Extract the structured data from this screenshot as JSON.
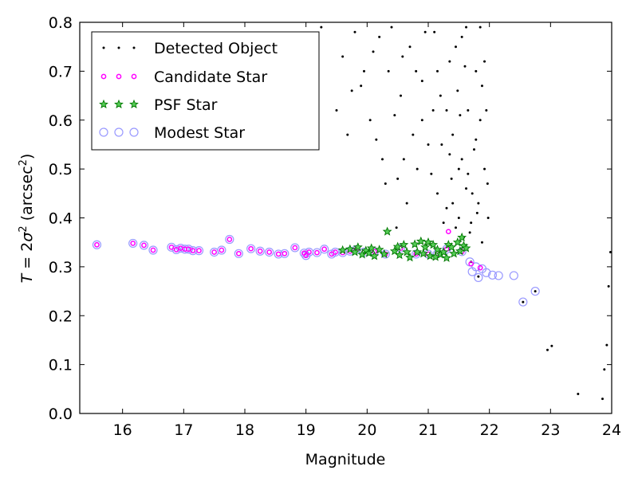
{
  "chart_data": {
    "type": "scatter",
    "xlabel": "Magnitude",
    "ylabel": "T = 2σ² (arcsec²)",
    "ylabel_parts": {
      "t": "T",
      "eq": " = 2",
      "sigma": "σ",
      "sup2a": "2",
      "unit_open": " (arcsec",
      "sup2b": "2",
      "unit_close": ")"
    },
    "xlim": [
      15.3,
      24
    ],
    "ylim": [
      0.0,
      0.8
    ],
    "xticks": [
      "16",
      "17",
      "18",
      "19",
      "20",
      "21",
      "22",
      "23",
      "24"
    ],
    "yticks": [
      "0.0",
      "0.1",
      "0.2",
      "0.3",
      "0.4",
      "0.5",
      "0.6",
      "0.7",
      "0.8"
    ],
    "grid": false,
    "legend_position": "top-left",
    "legend": [
      {
        "label": "Detected Object",
        "marker": "dot",
        "color": "#000000"
      },
      {
        "label": "Candidate Star",
        "marker": "ring",
        "color": "#ff00ff"
      },
      {
        "label": "PSF Star",
        "marker": "star",
        "color": "#00aa00"
      },
      {
        "label": "Modest Star",
        "marker": "open-circle",
        "color": "#9999ff"
      }
    ],
    "series": [
      {
        "name": "Candidate Star",
        "points": [
          [
            15.58,
            0.345
          ],
          [
            16.17,
            0.348
          ],
          [
            16.35,
            0.344
          ],
          [
            16.5,
            0.334
          ],
          [
            16.8,
            0.34
          ],
          [
            16.88,
            0.335
          ],
          [
            16.95,
            0.338
          ],
          [
            17.02,
            0.336
          ],
          [
            17.08,
            0.336
          ],
          [
            17.15,
            0.333
          ],
          [
            17.25,
            0.333
          ],
          [
            17.5,
            0.33
          ],
          [
            17.62,
            0.334
          ],
          [
            17.75,
            0.356
          ],
          [
            17.9,
            0.327
          ],
          [
            18.1,
            0.337
          ],
          [
            18.25,
            0.332
          ],
          [
            18.4,
            0.33
          ],
          [
            18.55,
            0.326
          ],
          [
            18.65,
            0.327
          ],
          [
            18.82,
            0.339
          ],
          [
            18.97,
            0.328
          ],
          [
            19.0,
            0.323
          ],
          [
            19.05,
            0.33
          ],
          [
            19.18,
            0.329
          ],
          [
            19.3,
            0.336
          ],
          [
            19.42,
            0.326
          ],
          [
            19.48,
            0.33
          ],
          [
            19.6,
            0.329
          ],
          [
            19.72,
            0.332
          ],
          [
            19.82,
            0.335
          ],
          [
            19.95,
            0.33
          ],
          [
            20.12,
            0.331
          ],
          [
            20.3,
            0.326
          ],
          [
            20.55,
            0.338
          ],
          [
            20.8,
            0.326
          ],
          [
            21.0,
            0.326
          ],
          [
            21.15,
            0.327
          ],
          [
            21.3,
            0.336
          ],
          [
            21.33,
            0.372
          ],
          [
            21.55,
            0.331
          ],
          [
            21.7,
            0.306
          ],
          [
            21.85,
            0.298
          ]
        ]
      },
      {
        "name": "PSF Star",
        "points": [
          [
            19.6,
            0.334
          ],
          [
            19.72,
            0.336
          ],
          [
            19.8,
            0.33
          ],
          [
            19.85,
            0.34
          ],
          [
            19.92,
            0.325
          ],
          [
            19.98,
            0.333
          ],
          [
            20.03,
            0.328
          ],
          [
            20.07,
            0.338
          ],
          [
            20.12,
            0.322
          ],
          [
            20.2,
            0.335
          ],
          [
            20.28,
            0.326
          ],
          [
            20.33,
            0.372
          ],
          [
            20.45,
            0.332
          ],
          [
            20.5,
            0.341
          ],
          [
            20.53,
            0.324
          ],
          [
            20.6,
            0.345
          ],
          [
            20.65,
            0.33
          ],
          [
            20.7,
            0.319
          ],
          [
            20.78,
            0.346
          ],
          [
            20.82,
            0.33
          ],
          [
            20.88,
            0.352
          ],
          [
            20.92,
            0.327
          ],
          [
            20.95,
            0.34
          ],
          [
            21.0,
            0.35
          ],
          [
            21.03,
            0.322
          ],
          [
            21.08,
            0.345
          ],
          [
            21.12,
            0.32
          ],
          [
            21.15,
            0.335
          ],
          [
            21.2,
            0.325
          ],
          [
            21.25,
            0.33
          ],
          [
            21.3,
            0.318
          ],
          [
            21.33,
            0.345
          ],
          [
            21.38,
            0.34
          ],
          [
            21.42,
            0.327
          ],
          [
            21.48,
            0.35
          ],
          [
            21.52,
            0.332
          ],
          [
            21.55,
            0.36
          ],
          [
            21.58,
            0.343
          ],
          [
            21.62,
            0.338
          ]
        ]
      },
      {
        "name": "Modest Star",
        "points": [
          [
            15.58,
            0.345
          ],
          [
            16.17,
            0.348
          ],
          [
            16.35,
            0.344
          ],
          [
            16.5,
            0.334
          ],
          [
            16.8,
            0.34
          ],
          [
            16.88,
            0.335
          ],
          [
            16.95,
            0.338
          ],
          [
            17.02,
            0.336
          ],
          [
            17.08,
            0.336
          ],
          [
            17.15,
            0.333
          ],
          [
            17.25,
            0.333
          ],
          [
            17.5,
            0.33
          ],
          [
            17.62,
            0.334
          ],
          [
            17.75,
            0.356
          ],
          [
            17.9,
            0.327
          ],
          [
            18.1,
            0.337
          ],
          [
            18.25,
            0.332
          ],
          [
            18.4,
            0.33
          ],
          [
            18.55,
            0.326
          ],
          [
            18.65,
            0.327
          ],
          [
            18.82,
            0.339
          ],
          [
            18.97,
            0.328
          ],
          [
            19.0,
            0.323
          ],
          [
            19.05,
            0.33
          ],
          [
            19.18,
            0.329
          ],
          [
            19.3,
            0.336
          ],
          [
            19.42,
            0.326
          ],
          [
            19.48,
            0.33
          ],
          [
            19.6,
            0.329
          ],
          [
            19.72,
            0.332
          ],
          [
            19.82,
            0.335
          ],
          [
            19.95,
            0.33
          ],
          [
            20.12,
            0.331
          ],
          [
            20.3,
            0.326
          ],
          [
            20.55,
            0.338
          ],
          [
            20.8,
            0.326
          ],
          [
            21.0,
            0.326
          ],
          [
            21.15,
            0.327
          ],
          [
            21.3,
            0.336
          ],
          [
            21.55,
            0.331
          ],
          [
            21.68,
            0.31
          ],
          [
            21.72,
            0.29
          ],
          [
            21.78,
            0.3
          ],
          [
            21.82,
            0.278
          ],
          [
            21.88,
            0.296
          ],
          [
            21.95,
            0.288
          ],
          [
            22.05,
            0.283
          ],
          [
            22.15,
            0.282
          ],
          [
            22.4,
            0.282
          ],
          [
            22.55,
            0.228
          ],
          [
            22.75,
            0.25
          ]
        ]
      },
      {
        "name": "Detected Object",
        "points": [
          [
            21.7,
            0.31
          ],
          [
            21.82,
            0.28
          ],
          [
            22.55,
            0.228
          ],
          [
            22.75,
            0.25
          ],
          [
            22.95,
            0.13
          ],
          [
            23.02,
            0.138
          ],
          [
            23.45,
            0.04
          ],
          [
            23.85,
            0.03
          ],
          [
            23.88,
            0.09
          ],
          [
            23.92,
            0.14
          ],
          [
            23.95,
            0.26
          ],
          [
            23.98,
            0.33
          ],
          [
            19.68,
            0.57
          ],
          [
            19.75,
            0.66
          ],
          [
            19.95,
            0.7
          ],
          [
            20.1,
            0.74
          ],
          [
            20.2,
            0.77
          ],
          [
            20.4,
            0.79
          ],
          [
            20.45,
            0.61
          ],
          [
            20.55,
            0.65
          ],
          [
            20.6,
            0.52
          ],
          [
            20.7,
            0.75
          ],
          [
            20.8,
            0.7
          ],
          [
            20.9,
            0.6
          ],
          [
            21.0,
            0.55
          ],
          [
            21.1,
            0.78
          ],
          [
            21.15,
            0.45
          ],
          [
            21.2,
            0.65
          ],
          [
            21.3,
            0.42
          ],
          [
            21.35,
            0.72
          ],
          [
            21.4,
            0.57
          ],
          [
            21.45,
            0.38
          ],
          [
            21.5,
            0.5
          ],
          [
            21.55,
            0.77
          ],
          [
            21.58,
            0.36
          ],
          [
            21.62,
            0.46
          ],
          [
            21.65,
            0.62
          ],
          [
            21.7,
            0.39
          ],
          [
            21.75,
            0.54
          ],
          [
            21.78,
            0.7
          ],
          [
            21.82,
            0.43
          ],
          [
            21.85,
            0.79
          ],
          [
            21.88,
            0.35
          ],
          [
            21.92,
            0.5
          ],
          [
            21.95,
            0.62
          ],
          [
            21.98,
            0.4
          ],
          [
            18.65,
            0.69
          ],
          [
            19.5,
            0.62
          ],
          [
            20.3,
            0.47
          ],
          [
            19.25,
            0.79
          ],
          [
            20.15,
            0.56
          ],
          [
            20.48,
            0.38
          ],
          [
            21.25,
            0.39
          ],
          [
            21.05,
            0.49
          ],
          [
            20.65,
            0.43
          ],
          [
            21.52,
            0.61
          ],
          [
            20.9,
            0.68
          ],
          [
            19.9,
            0.67
          ],
          [
            20.75,
            0.57
          ],
          [
            21.38,
            0.48
          ],
          [
            21.6,
            0.71
          ],
          [
            21.72,
            0.45
          ],
          [
            21.45,
            0.75
          ],
          [
            20.35,
            0.7
          ],
          [
            19.8,
            0.78
          ],
          [
            21.22,
            0.55
          ],
          [
            21.88,
            0.67
          ],
          [
            21.68,
            0.37
          ],
          [
            21.4,
            0.43
          ],
          [
            21.92,
            0.72
          ],
          [
            21.78,
            0.56
          ],
          [
            21.55,
            0.52
          ],
          [
            21.48,
            0.66
          ],
          [
            21.3,
            0.62
          ],
          [
            20.95,
            0.78
          ],
          [
            20.58,
            0.73
          ],
          [
            20.05,
            0.6
          ],
          [
            19.6,
            0.73
          ],
          [
            21.15,
            0.7
          ],
          [
            21.85,
            0.6
          ],
          [
            21.62,
            0.79
          ],
          [
            21.35,
            0.53
          ],
          [
            21.97,
            0.47
          ],
          [
            21.8,
            0.41
          ],
          [
            20.5,
            0.48
          ],
          [
            20.82,
            0.5
          ],
          [
            21.08,
            0.62
          ],
          [
            20.25,
            0.52
          ],
          [
            21.65,
            0.49
          ],
          [
            21.5,
            0.4
          ]
        ]
      }
    ]
  }
}
